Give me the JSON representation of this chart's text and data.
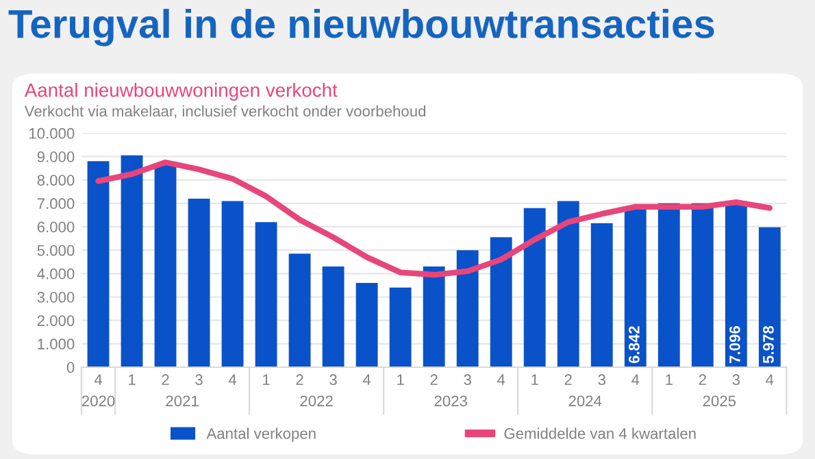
{
  "chart_data": {
    "type": "bar",
    "title": "Terugval in de nieuwbouwtransacties",
    "subtitle": "Aantal nieuwbouwwoningen verkocht",
    "annotations": [
      "Verkocht via makelaar, inclusief verkocht onder voorbehoud",
      "2020",
      "2021",
      "2022",
      "2023",
      "2024",
      "2025"
    ],
    "categories": [
      "4",
      "1",
      "2",
      "3",
      "4",
      "1",
      "2",
      "3",
      "4",
      "1",
      "2",
      "3",
      "4",
      "1",
      "2",
      "3",
      "4",
      "1",
      "2",
      "3",
      "4"
    ],
    "series": [
      {
        "name": "Aantal verkopen",
        "color": "#0a52c9",
        "values": [
          8800,
          9050,
          8700,
          7200,
          7100,
          6200,
          4850,
          4300,
          3600,
          3400,
          4300,
          5000,
          5550,
          6800,
          7100,
          6150,
          6842,
          7000,
          7000,
          7096,
          5978
        ],
        "value_labels": [
          null,
          null,
          null,
          null,
          null,
          null,
          null,
          null,
          null,
          null,
          null,
          null,
          null,
          null,
          null,
          null,
          "6.842",
          null,
          null,
          "7.096",
          "5.978"
        ]
      },
      {
        "name": "Gemiddelde van 4 kwartalen",
        "type": "line",
        "color": "#e8457a",
        "values": [
          7950,
          8250,
          8750,
          8450,
          8050,
          7300,
          6300,
          5550,
          4700,
          4050,
          3950,
          4100,
          4600,
          5450,
          6200,
          6550,
          6850,
          6850,
          6850,
          7050,
          6800
        ]
      }
    ],
    "ylim": [
      0,
      10000
    ],
    "yticks": [
      {
        "value": 0,
        "label": "0"
      },
      {
        "value": 1000,
        "label": "1.000"
      },
      {
        "value": 2000,
        "label": "2.000"
      },
      {
        "value": 3000,
        "label": "3.000"
      },
      {
        "value": 4000,
        "label": "4.000"
      },
      {
        "value": 5000,
        "label": "5.000"
      },
      {
        "value": 6000,
        "label": "6.000"
      },
      {
        "value": 7000,
        "label": "7.000"
      },
      {
        "value": 8000,
        "label": "8.000"
      },
      {
        "value": 9000,
        "label": "9.000"
      },
      {
        "value": 10000,
        "label": "10.000"
      }
    ],
    "grid": "y",
    "legend": "bottom"
  }
}
